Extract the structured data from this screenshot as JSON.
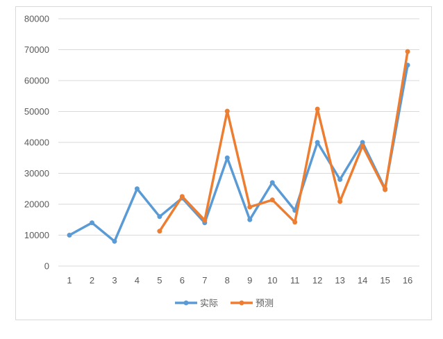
{
  "chart_data": {
    "type": "line",
    "categories": [
      "1",
      "2",
      "3",
      "4",
      "5",
      "6",
      "7",
      "8",
      "9",
      "10",
      "11",
      "12",
      "13",
      "14",
      "15",
      "16"
    ],
    "series": [
      {
        "name": "实际",
        "color": "#5B9BD5",
        "values": [
          10000,
          14000,
          8000,
          25000,
          16000,
          22000,
          14000,
          35000,
          15000,
          27000,
          18000,
          40000,
          28000,
          40000,
          25000,
          65000
        ]
      },
      {
        "name": "预测",
        "color": "#ED7D31",
        "values": [
          null,
          null,
          null,
          null,
          11300,
          22500,
          14800,
          50100,
          19100,
          21400,
          14200,
          50800,
          20900,
          38900,
          24700,
          69400
        ]
      }
    ],
    "yticks": [
      "0",
      "10000",
      "20000",
      "30000",
      "40000",
      "50000",
      "60000",
      "70000",
      "80000"
    ],
    "ylim": [
      0,
      80000
    ],
    "grid": true,
    "legend": "bottom"
  }
}
